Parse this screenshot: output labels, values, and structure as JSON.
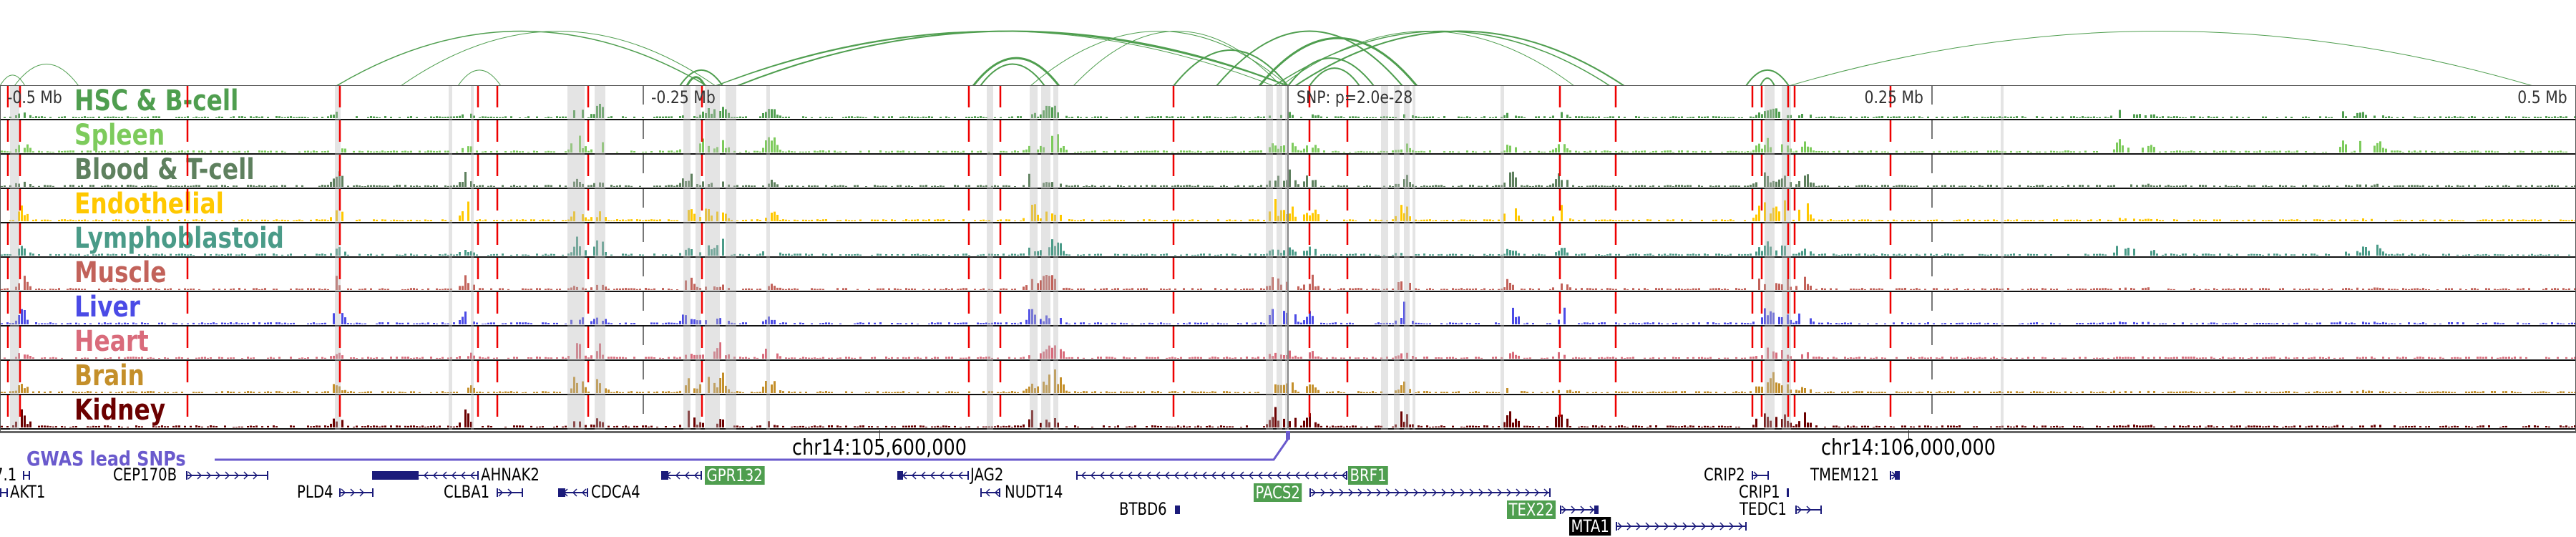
{
  "axis": {
    "top_ticks": [
      "-0.5 Mb",
      "-0.25 Mb",
      "0.25 Mb",
      "0.5 Mb"
    ],
    "snp_label": "SNP: p=2.0e-28",
    "chr_ticks": [
      "chr14:105,600,000",
      "chr14:106,000,000"
    ]
  },
  "tracks": [
    {
      "label": "HSC & B-cell",
      "color": "#4f9e4f"
    },
    {
      "label": "Spleen",
      "color": "#7dcb5c"
    },
    {
      "label": "Blood & T-cell",
      "color": "#5e805e"
    },
    {
      "label": "Endothelial",
      "color": "#ffc800"
    },
    {
      "label": "Lymphoblastoid",
      "color": "#4a9b88"
    },
    {
      "label": "Muscle",
      "color": "#c2625a"
    },
    {
      "label": "Liver",
      "color": "#4b4be6"
    },
    {
      "label": "Heart",
      "color": "#d96b7b"
    },
    {
      "label": "Brain",
      "color": "#c48f2a"
    },
    {
      "label": "Kidney",
      "color": "#6b0000"
    }
  ],
  "gwas": {
    "label": "GWAS lead SNPs",
    "color": "#6a5acd"
  },
  "arc_color": "#4f9e4f",
  "genes": [
    {
      "name": "7.1",
      "highlight": "none"
    },
    {
      "name": "CEP170B",
      "highlight": "none"
    },
    {
      "name": "AHNAK2",
      "highlight": "none"
    },
    {
      "name": "GPR132",
      "highlight": "green"
    },
    {
      "name": "JAG2",
      "highlight": "none"
    },
    {
      "name": "BRF1",
      "highlight": "green"
    },
    {
      "name": "CRIP2",
      "highlight": "none"
    },
    {
      "name": "TMEM121",
      "highlight": "none"
    },
    {
      "name": "AKT1",
      "highlight": "none"
    },
    {
      "name": "PLD4",
      "highlight": "none"
    },
    {
      "name": "CLBA1",
      "highlight": "none"
    },
    {
      "name": "CDCA4",
      "highlight": "none"
    },
    {
      "name": "NUDT14",
      "highlight": "none"
    },
    {
      "name": "PACS2",
      "highlight": "green"
    },
    {
      "name": "CRIP1",
      "highlight": "none"
    },
    {
      "name": "BTBD6",
      "highlight": "none"
    },
    {
      "name": "TEX22",
      "highlight": "green"
    },
    {
      "name": "TEDC1",
      "highlight": "none"
    },
    {
      "name": "MTA1",
      "highlight": "black"
    }
  ]
}
